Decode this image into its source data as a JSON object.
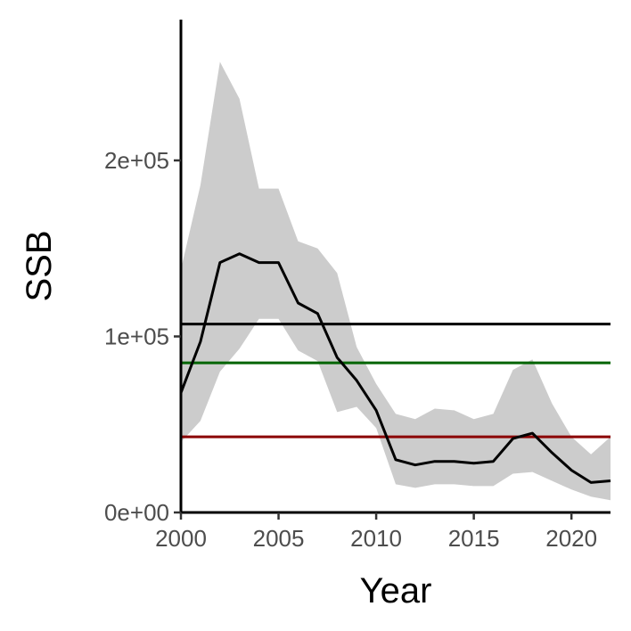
{
  "chart_data": {
    "type": "line",
    "title": "",
    "xlabel": "Year",
    "ylabel": "SSB",
    "xlim": [
      2000,
      2022
    ],
    "ylim": [
      0,
      280000
    ],
    "x_ticks": [
      2000,
      2005,
      2010,
      2015,
      2020
    ],
    "x_tick_labels": [
      "2000",
      "2005",
      "2010",
      "2015",
      "2020"
    ],
    "y_ticks": [
      0,
      100000,
      200000
    ],
    "y_tick_labels": [
      "0e+00",
      "1e+05",
      "2e+05"
    ],
    "grid": false,
    "legend": "none",
    "x": [
      2000,
      2001,
      2002,
      2003,
      2004,
      2005,
      2006,
      2007,
      2008,
      2009,
      2010,
      2011,
      2012,
      2013,
      2014,
      2015,
      2016,
      2017,
      2018,
      2019,
      2020,
      2021,
      2022
    ],
    "series": [
      {
        "values": [
          68000,
          97000,
          142000,
          147000,
          142000,
          142000,
          119000,
          113000,
          88000,
          75000,
          58000,
          30000,
          27000,
          29000,
          29000,
          28000,
          29000,
          42000,
          45000,
          34000,
          24000,
          17000,
          18000
        ],
        "lower": [
          40000,
          52000,
          80000,
          93000,
          110000,
          110000,
          92000,
          86000,
          57000,
          60000,
          48000,
          16000,
          14000,
          16000,
          16000,
          15000,
          15000,
          22000,
          23000,
          18000,
          13000,
          9000,
          7000
        ],
        "upper": [
          138000,
          186000,
          256000,
          235000,
          184000,
          184000,
          154000,
          150000,
          136000,
          94000,
          73000,
          56000,
          53000,
          59000,
          58000,
          53000,
          56000,
          81000,
          87000,
          62000,
          43000,
          33000,
          43000
        ],
        "color": "#000000",
        "band_color": "#cccccc"
      }
    ],
    "reference_lines": [
      {
        "value": 107000,
        "color": "#000000"
      },
      {
        "value": 85000,
        "color": "#006400"
      },
      {
        "value": 43000,
        "color": "#8b0000"
      }
    ]
  }
}
